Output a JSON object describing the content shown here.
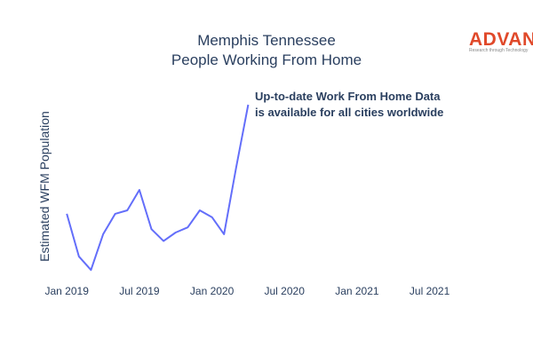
{
  "chart_data": {
    "type": "line",
    "title_line1": "Memphis Tennessee",
    "title_line2": "People Working From Home",
    "ylabel": "Estimated WFM Population",
    "xlabel": "",
    "x_tick_labels": [
      "Jan 2019",
      "Jul 2019",
      "Jan 2020",
      "Jul 2020",
      "Jan 2021",
      "Jul 2021"
    ],
    "x_tick_values": [
      "2019-01",
      "2019-07",
      "2020-01",
      "2020-07",
      "2021-01",
      "2021-07"
    ],
    "x_range": [
      "2018-11",
      "2021-11"
    ],
    "y_range": [
      0,
      100
    ],
    "y_ticks_shown": false,
    "grid": false,
    "annotation_line1": "Up-to-date Work From Home Data",
    "annotation_line2": "is available for all cities worldwide",
    "series": [
      {
        "color": "#636efa",
        "x": [
          "2019-01",
          "2019-02",
          "2019-03",
          "2019-04",
          "2019-05",
          "2019-06",
          "2019-07",
          "2019-08",
          "2019-09",
          "2019-10",
          "2019-11",
          "2019-12",
          "2020-01",
          "2020-02",
          "2020-03",
          "2020-04"
        ],
        "y": [
          36,
          11,
          3,
          24,
          36,
          38,
          50,
          27,
          20,
          25,
          28,
          38,
          34,
          24,
          63,
          100
        ]
      }
    ]
  },
  "logo": {
    "text": "ADVAN",
    "tagline": "Research through Technology",
    "color": "#e0492a"
  }
}
